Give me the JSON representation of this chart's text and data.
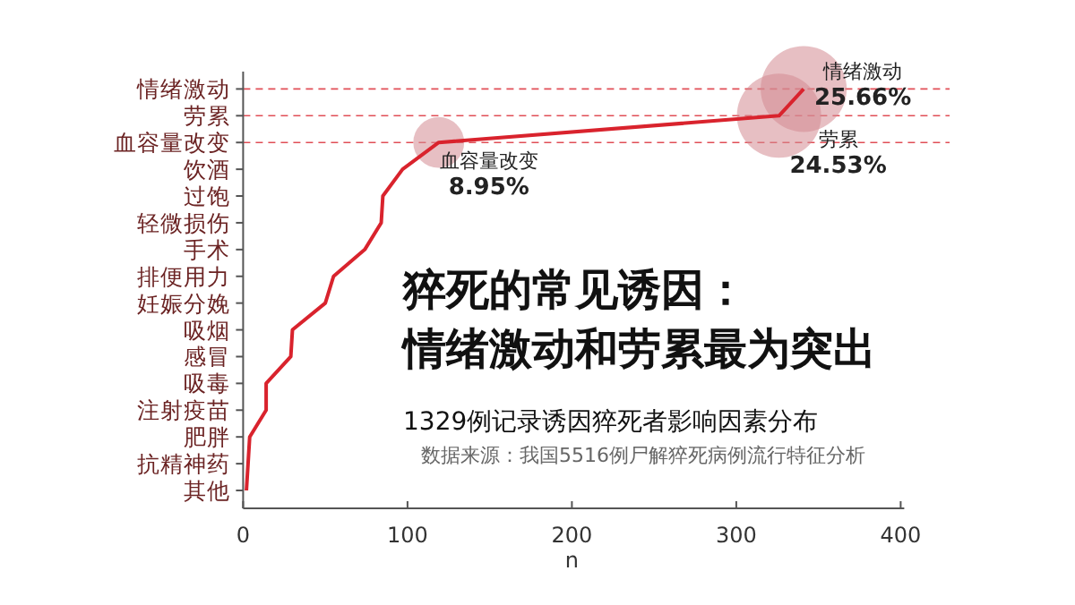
{
  "chart_data": {
    "type": "line",
    "title": "猝死的常见诱因：情绪激动和劳累最为突出",
    "subtitle": "1329例记录诱因猝死者影响因素分布",
    "xlabel": "n",
    "orientation": "horizontal",
    "categories": [
      "情绪激动",
      "劳累",
      "血容量改变",
      "饮酒",
      "过饱",
      "轻微损伤",
      "手术",
      "排便用力",
      "妊娠分娩",
      "吸烟",
      "感冒",
      "吸毒",
      "注射疫苗",
      "肥胖",
      "抗精神药",
      "其他"
    ],
    "series": [
      {
        "type": "line",
        "color": "#d9232d",
        "values": [
          341,
          326,
          119,
          97,
          85,
          84,
          74,
          55,
          50,
          30,
          29,
          14,
          14,
          4,
          3,
          2
        ]
      },
      {
        "type": "bubble",
        "color": "#d48a92",
        "values": [
          341,
          326,
          119,
          null,
          null,
          null,
          null,
          null,
          null,
          null,
          null,
          null,
          null,
          null,
          null,
          null
        ],
        "sizes": [
          1,
          0.96,
          0.35,
          null,
          null,
          null,
          null,
          null,
          null,
          null,
          null,
          null,
          null,
          null,
          null,
          null
        ]
      }
    ],
    "xlim": [
      0,
      400
    ],
    "xticks": [
      0,
      100,
      200,
      300,
      400
    ],
    "ref_lines": [
      {
        "axis": "y",
        "value": "情绪激动",
        "color": "#d9232d",
        "line_style": "dashed"
      },
      {
        "axis": "y",
        "value": "劳累",
        "color": "#d9232d",
        "line_style": "dashed"
      },
      {
        "axis": "y",
        "value": "血容量改变",
        "color": "#d9232d",
        "line_style": "dashed"
      }
    ],
    "annotations": [
      {
        "text": "血容量改变\n8.95%",
        "x": 119,
        "y": "血容量改变"
      },
      {
        "text": "情绪激动\n25.66%",
        "x": 341,
        "y": "情绪激动"
      },
      {
        "text": "劳累\n24.53%",
        "x": 326,
        "y": "劳累"
      },
      "数据来源：我国5516例尸解猝死病例流行特征分析"
    ],
    "grid": false
  }
}
